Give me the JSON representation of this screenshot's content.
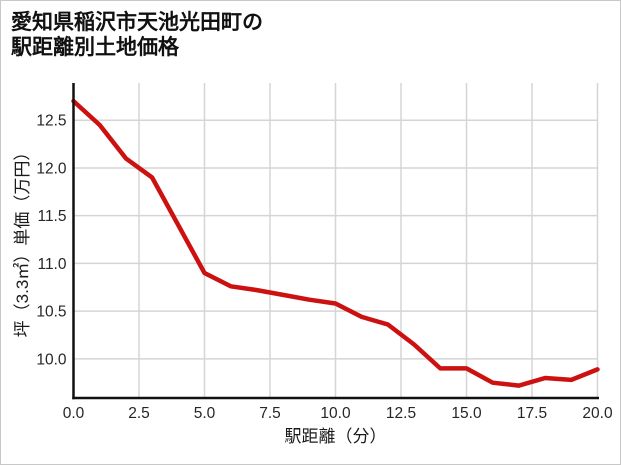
{
  "title": {
    "line1": "愛知県稲沢市天池光田町の",
    "line2": "駅距離別土地価格"
  },
  "chart_data": {
    "type": "line",
    "title": "愛知県稲沢市天池光田町の駅距離別土地価格",
    "xlabel": "駅距離（分）",
    "ylabel": "坪（3.3㎡）単価（万円）",
    "series": [
      {
        "name": "駅距離別土地価格",
        "x": [
          0,
          1,
          2,
          3,
          4,
          5,
          6,
          7,
          8,
          9,
          10,
          11,
          12,
          13,
          14,
          15,
          16,
          17,
          18,
          19,
          20
        ],
        "y": [
          12.7,
          12.45,
          12.1,
          11.9,
          11.4,
          10.9,
          10.76,
          10.72,
          10.67,
          10.62,
          10.58,
          10.44,
          10.36,
          10.15,
          9.9,
          9.9,
          9.75,
          9.72,
          9.8,
          9.78,
          9.89
        ]
      }
    ],
    "xlim": [
      0,
      20
    ],
    "ylim": [
      9.59,
      12.89
    ],
    "xticks": [
      0.0,
      2.5,
      5.0,
      7.5,
      10.0,
      12.5,
      15.0,
      17.5,
      20.0
    ],
    "yticks": [
      10.0,
      10.5,
      11.0,
      11.5,
      12.0,
      12.5
    ],
    "grid": true,
    "legend": "none",
    "colors": {
      "line": "#cc1111",
      "grid": "#d5d5d5",
      "spine": "#111111",
      "tick_label": "#262626",
      "axis_label": "#1a1a1a",
      "background": "#ffffff",
      "border": "#c8c8c8"
    }
  }
}
